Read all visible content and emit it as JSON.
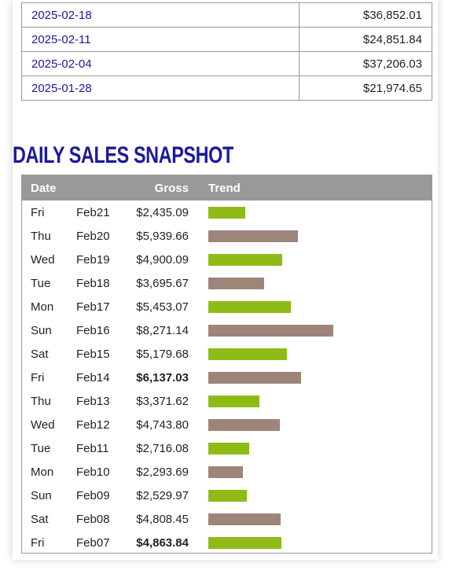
{
  "weekly": [
    {
      "date": "2025-02-18",
      "amount": "$36,852.01"
    },
    {
      "date": "2025-02-11",
      "amount": "$24,851.84"
    },
    {
      "date": "2025-02-04",
      "amount": "$37,206.03"
    },
    {
      "date": "2025-01-28",
      "amount": "$21,974.65"
    }
  ],
  "daily": {
    "title": "DAILY SALES SNAPSHOT",
    "headers": {
      "date": "Date",
      "gross": "Gross",
      "trend": "Trend"
    },
    "colors": {
      "green": "#8fbb17",
      "brown": "#9d857a",
      "header": "#999999",
      "title": "#1a1a9c"
    },
    "rows": [
      {
        "day": "Fri",
        "date": "Feb21",
        "gross": "$2,435.09",
        "value": 2435.09,
        "bold": false,
        "color": "green"
      },
      {
        "day": "Thu",
        "date": "Feb20",
        "gross": "$5,939.66",
        "value": 5939.66,
        "bold": false,
        "color": "brown"
      },
      {
        "day": "Wed",
        "date": "Feb19",
        "gross": "$4,900.09",
        "value": 4900.09,
        "bold": false,
        "color": "green"
      },
      {
        "day": "Tue",
        "date": "Feb18",
        "gross": "$3,695.67",
        "value": 3695.67,
        "bold": false,
        "color": "brown"
      },
      {
        "day": "Mon",
        "date": "Feb17",
        "gross": "$5,453.07",
        "value": 5453.07,
        "bold": false,
        "color": "green"
      },
      {
        "day": "Sun",
        "date": "Feb16",
        "gross": "$8,271.14",
        "value": 8271.14,
        "bold": false,
        "color": "brown"
      },
      {
        "day": "Sat",
        "date": "Feb15",
        "gross": "$5,179.68",
        "value": 5179.68,
        "bold": false,
        "color": "green"
      },
      {
        "day": "Fri",
        "date": "Feb14",
        "gross": "$6,137.03",
        "value": 6137.03,
        "bold": true,
        "color": "brown"
      },
      {
        "day": "Thu",
        "date": "Feb13",
        "gross": "$3,371.62",
        "value": 3371.62,
        "bold": false,
        "color": "green"
      },
      {
        "day": "Wed",
        "date": "Feb12",
        "gross": "$4,743.80",
        "value": 4743.8,
        "bold": false,
        "color": "brown"
      },
      {
        "day": "Tue",
        "date": "Feb11",
        "gross": "$2,716.08",
        "value": 2716.08,
        "bold": false,
        "color": "green"
      },
      {
        "day": "Mon",
        "date": "Feb10",
        "gross": "$2,293.69",
        "value": 2293.69,
        "bold": false,
        "color": "brown"
      },
      {
        "day": "Sun",
        "date": "Feb09",
        "gross": "$2,529.97",
        "value": 2529.97,
        "bold": false,
        "color": "green"
      },
      {
        "day": "Sat",
        "date": "Feb08",
        "gross": "$4,808.45",
        "value": 4808.45,
        "bold": false,
        "color": "brown"
      },
      {
        "day": "Fri",
        "date": "Feb07",
        "gross": "$4,863.84",
        "value": 4863.84,
        "bold": true,
        "color": "green"
      }
    ]
  }
}
